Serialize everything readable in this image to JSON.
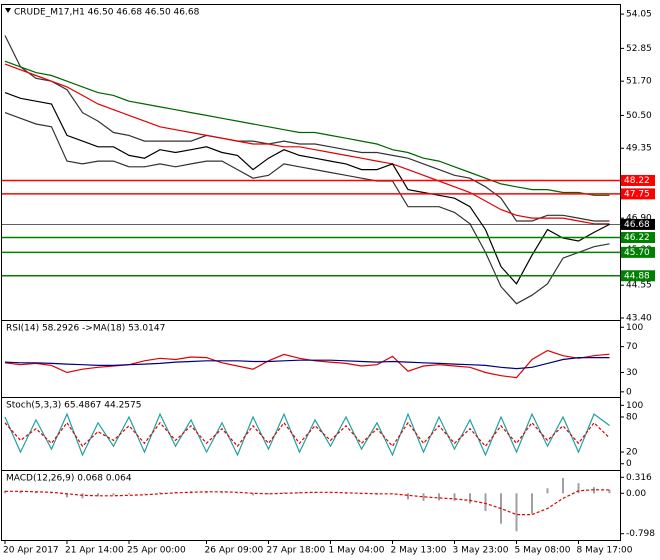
{
  "chart_data": [
    {
      "type": "line",
      "title": "CRUDE_M17,H1  46.50 46.68 46.50 46.68",
      "ylim": [
        43.33,
        54.37
      ],
      "yticks": [
        54.05,
        52.85,
        {
          "value": 51.7,
          "label": "51.70"
        },
        {
          "value": 50.5,
          "label": "50.50"
        },
        49.35,
        48.15,
        {
          "value": 46.9,
          "label": "46.90"
        },
        {
          "value": 45.8,
          "label": "45.80"
        },
        44.55,
        {
          "value": 43.4,
          "label": "43.40"
        }
      ],
      "levels": [
        {
          "value": 48.22,
          "color": "#ff0000"
        },
        {
          "value": 47.75,
          "color": "#ff0000"
        },
        {
          "value": 46.68,
          "color": "#000000"
        },
        {
          "value": 46.22,
          "color": "#008000"
        },
        {
          "value": 45.7,
          "label": "45.70",
          "color": "#008000"
        },
        {
          "value": 44.88,
          "color": "#008000"
        }
      ],
      "series": [
        {
          "color": "#333333",
          "values": [
            53.3,
            52.2,
            51.8,
            51.7,
            51.4,
            50.6,
            50.3,
            49.9,
            49.8,
            49.6,
            49.6,
            49.6,
            49.6,
            49.8,
            49.7,
            49.6,
            49.6,
            49.5,
            49.6,
            49.5,
            49.5,
            49.4,
            49.3,
            49.2,
            49.2,
            49.1,
            49.0,
            48.8,
            48.6,
            48.4,
            48.3,
            48.0,
            47.6,
            46.8,
            46.8,
            47.0,
            47.0,
            46.9,
            46.8,
            46.8
          ]
        },
        {
          "color": "#333333",
          "values": [
            50.6,
            50.4,
            50.2,
            50.1,
            48.9,
            48.8,
            48.9,
            48.9,
            48.7,
            48.7,
            48.8,
            48.7,
            48.8,
            48.9,
            48.9,
            48.6,
            48.3,
            48.4,
            48.8,
            48.7,
            48.6,
            48.5,
            48.4,
            48.3,
            48.2,
            48.2,
            47.3,
            47.3,
            47.3,
            47.1,
            46.7,
            45.7,
            44.5,
            43.9,
            44.2,
            44.6,
            45.5,
            45.7,
            45.9,
            46.0
          ]
        },
        {
          "color": "#006400",
          "values": [
            52.4,
            52.2,
            52.0,
            51.9,
            51.7,
            51.5,
            51.3,
            51.2,
            51.0,
            50.9,
            50.8,
            50.7,
            50.6,
            50.5,
            50.4,
            50.3,
            50.2,
            50.1,
            50.0,
            49.9,
            49.9,
            49.8,
            49.7,
            49.6,
            49.5,
            49.3,
            49.2,
            49.0,
            48.9,
            48.7,
            48.5,
            48.3,
            48.1,
            48.0,
            47.9,
            47.9,
            47.8,
            47.8,
            47.7,
            47.7
          ]
        },
        {
          "color": "#e00000",
          "values": [
            52.3,
            52.1,
            51.9,
            51.7,
            51.5,
            51.2,
            50.9,
            50.7,
            50.5,
            50.3,
            50.1,
            50.0,
            49.9,
            49.8,
            49.7,
            49.6,
            49.5,
            49.5,
            49.4,
            49.4,
            49.3,
            49.2,
            49.1,
            49.0,
            48.9,
            48.8,
            48.6,
            48.4,
            48.2,
            48.0,
            47.8,
            47.5,
            47.2,
            47.0,
            46.9,
            46.9,
            46.9,
            46.8,
            46.7,
            46.7
          ]
        },
        {
          "color": "#000000",
          "values": [
            51.3,
            51.1,
            51.0,
            50.9,
            49.8,
            49.6,
            49.4,
            49.4,
            49.1,
            49.0,
            49.3,
            49.2,
            49.3,
            49.4,
            49.2,
            49.1,
            48.6,
            49.0,
            49.3,
            49.1,
            49.0,
            48.9,
            48.8,
            48.6,
            48.6,
            48.8,
            47.9,
            47.8,
            47.7,
            47.6,
            47.3,
            46.5,
            45.2,
            44.6,
            45.6,
            46.5,
            46.2,
            46.1,
            46.4,
            46.68
          ]
        }
      ]
    },
    {
      "type": "line",
      "title": "RSI(14) 58.2926  ->MA(18) 53.0147",
      "ylim": [
        -8,
        109.7
      ],
      "yticks": [
        100,
        70,
        30,
        0
      ],
      "series": [
        {
          "color": "#e00000",
          "values": [
            45,
            42,
            44,
            41,
            30,
            35,
            38,
            40,
            42,
            48,
            52,
            50,
            54,
            53,
            45,
            40,
            35,
            48,
            58,
            52,
            48,
            46,
            44,
            40,
            42,
            55,
            32,
            40,
            42,
            40,
            38,
            30,
            25,
            22,
            50,
            64,
            56,
            52,
            56,
            58.29
          ]
        },
        {
          "color": "#000080",
          "values": [
            46,
            45,
            45,
            44,
            43,
            42,
            41,
            41,
            42,
            43,
            44,
            46,
            47,
            48,
            48,
            48,
            47,
            47,
            48,
            49,
            49,
            49,
            48,
            47,
            46,
            47,
            46,
            45,
            44,
            43,
            42,
            41,
            38,
            36,
            38,
            44,
            50,
            53,
            53,
            53.01
          ]
        }
      ]
    },
    {
      "type": "line",
      "title": "Stoch(5,3,3) 65.4867 44.2575",
      "ylim": [
        -10.7,
        112.5
      ],
      "yticks": [
        100,
        80,
        20,
        0
      ],
      "series": [
        {
          "color": "#20a0a0",
          "values": [
            80,
            20,
            75,
            25,
            85,
            15,
            70,
            30,
            80,
            20,
            85,
            30,
            75,
            20,
            70,
            15,
            80,
            25,
            85,
            20,
            75,
            30,
            80,
            25,
            70,
            15,
            85,
            20,
            80,
            25,
            75,
            15,
            80,
            20,
            85,
            30,
            80,
            20,
            85,
            65.49
          ]
        },
        {
          "color": "#e00000",
          "dash": true,
          "values": [
            70,
            40,
            60,
            35,
            70,
            30,
            55,
            40,
            65,
            35,
            70,
            40,
            65,
            35,
            60,
            30,
            65,
            35,
            70,
            35,
            65,
            40,
            65,
            35,
            60,
            30,
            70,
            35,
            65,
            35,
            60,
            30,
            65,
            35,
            70,
            40,
            65,
            35,
            70,
            44.26
          ]
        }
      ]
    },
    {
      "type": "macd",
      "title": "MACD(12,26,9) 0.068 0.064",
      "ylim": [
        -0.922,
        0.44
      ],
      "yticks": [
        0.316,
        {
          "value": 0,
          "label": "0.00"
        },
        -0.798
      ],
      "categories": [
        "20 Apr 2017",
        null,
        null,
        null,
        "21 Apr 14:00",
        null,
        null,
        null,
        "25 Apr 00:00",
        null,
        null,
        null,
        null,
        "26 Apr 09:00",
        null,
        null,
        null,
        "27 Apr 18:00",
        null,
        null,
        null,
        "1 May 04:00",
        null,
        null,
        null,
        "2 May 13:00",
        null,
        null,
        null,
        "3 May 23:00",
        null,
        null,
        null,
        "5 May 08:00",
        null,
        null,
        null,
        "8 May 17:00",
        null,
        null
      ],
      "series": [
        {
          "color": "#a0a0a0",
          "style": "bar",
          "values": [
            0.05,
            0.04,
            0.02,
            0.0,
            -0.08,
            -0.1,
            -0.06,
            -0.04,
            -0.02,
            0.0,
            0.02,
            0.03,
            0.04,
            0.04,
            0.02,
            0.0,
            -0.04,
            -0.02,
            0.02,
            0.03,
            0.02,
            0.01,
            0.0,
            -0.02,
            -0.03,
            -0.01,
            -0.12,
            -0.15,
            -0.14,
            -0.15,
            -0.2,
            -0.35,
            -0.6,
            -0.75,
            -0.4,
            0.1,
            0.3,
            0.2,
            0.12,
            0.068
          ]
        },
        {
          "color": "#e00000",
          "dash": true,
          "values": [
            0.04,
            0.04,
            0.03,
            0.02,
            -0.01,
            -0.04,
            -0.05,
            -0.05,
            -0.04,
            -0.03,
            -0.01,
            0.01,
            0.02,
            0.03,
            0.03,
            0.02,
            0.0,
            -0.01,
            0.0,
            0.01,
            0.02,
            0.02,
            0.01,
            0.0,
            -0.01,
            -0.01,
            -0.04,
            -0.07,
            -0.09,
            -0.11,
            -0.14,
            -0.2,
            -0.3,
            -0.42,
            -0.42,
            -0.3,
            -0.1,
            0.05,
            0.07,
            0.064
          ]
        }
      ]
    }
  ]
}
